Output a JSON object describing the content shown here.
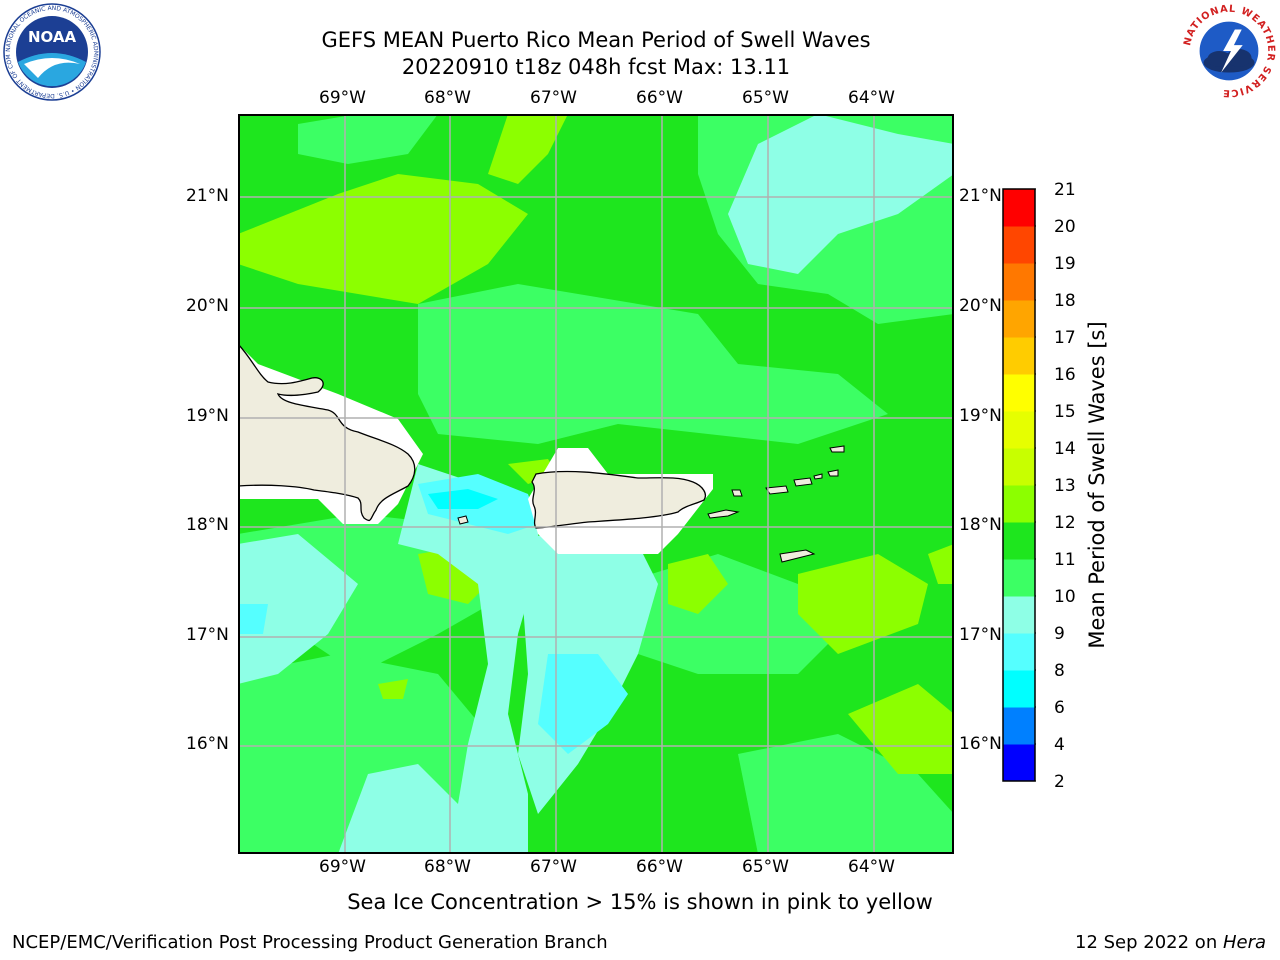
{
  "title": {
    "line1": "GEFS MEAN Puerto Rico Mean Period of Swell Waves",
    "line2": "20220910 t18z 048h fcst   Max: 13.11"
  },
  "map": {
    "region": "Puerto Rico",
    "longitude_labels": [
      "69°W",
      "68°W",
      "67°W",
      "66°W",
      "65°W",
      "64°W"
    ],
    "latitude_labels": [
      "21°N",
      "20°N",
      "19°N",
      "18°N",
      "17°N",
      "16°N"
    ],
    "land_color": "#efedde",
    "grid_color": "#b0b0b0"
  },
  "colorbar": {
    "label": "Mean Period of Swell Waves [s]",
    "ticks": [
      "2",
      "4",
      "6",
      "8",
      "9",
      "10",
      "11",
      "12",
      "13",
      "14",
      "15",
      "16",
      "17",
      "18",
      "19",
      "20",
      "21"
    ],
    "colors": [
      "#0000ff",
      "#0080ff",
      "#00ffff",
      "#55ffff",
      "#8effe6",
      "#3cff64",
      "#1ee61e",
      "#8cff00",
      "#c8ff00",
      "#e6ff00",
      "#ffff00",
      "#ffcc00",
      "#ffa500",
      "#ff7800",
      "#ff4600",
      "#ff0000"
    ]
  },
  "caption": "Sea Ice Concentration > 15% is shown in pink to yellow",
  "footer": {
    "left": "NCEP/EMC/Verification Post Processing Product Generation Branch",
    "right_prefix": "12 Sep 2022 on ",
    "right_machine": "Hera"
  },
  "logos": {
    "noaa_text": "NOAA",
    "noaa_ring_text": "NATIONAL OCEANIC AND ATMOSPHERIC ADMINISTRATION • U.S. DEPARTMENT OF COMMERCE •",
    "nws_ring_text": "NATIONAL WEATHER SERVICE"
  }
}
